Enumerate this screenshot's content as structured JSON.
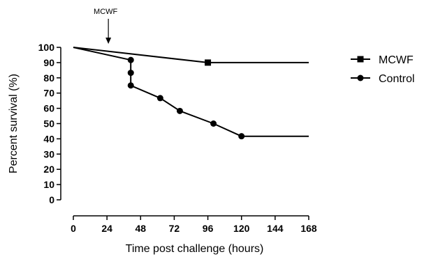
{
  "chart_data": {
    "type": "line",
    "xlabel": "Time post challenge (hours)",
    "ylabel": "Percent survival (%)",
    "xlim": [
      0,
      168
    ],
    "ylim": [
      0,
      100
    ],
    "xticks": [
      0,
      24,
      48,
      72,
      96,
      120,
      144,
      168
    ],
    "yticks": [
      0,
      10,
      20,
      30,
      40,
      50,
      60,
      70,
      80,
      90,
      100
    ],
    "grid": false,
    "legend_position": "top-right",
    "step": false,
    "series": [
      {
        "name": "MCWF",
        "marker": "square",
        "points": [
          [
            0,
            100
          ],
          [
            96,
            90
          ],
          [
            168,
            90
          ]
        ],
        "marked": [
          [
            96,
            90
          ]
        ]
      },
      {
        "name": "Control",
        "marker": "circle",
        "points": [
          [
            0,
            100
          ],
          [
            41,
            91.7
          ],
          [
            41,
            83.3
          ],
          [
            41,
            75
          ],
          [
            62,
            66.7
          ],
          [
            76,
            58.3
          ],
          [
            100,
            50
          ],
          [
            120,
            41.7
          ],
          [
            168,
            41.7
          ]
        ],
        "marked": [
          [
            41,
            91.7
          ],
          [
            41,
            83.3
          ],
          [
            41,
            75
          ],
          [
            62,
            66.7
          ],
          [
            76,
            58.3
          ],
          [
            100,
            50
          ],
          [
            120,
            41.7
          ]
        ]
      }
    ],
    "annotations": [
      {
        "text": "MCWF",
        "x": 24,
        "arrow": true
      }
    ]
  }
}
